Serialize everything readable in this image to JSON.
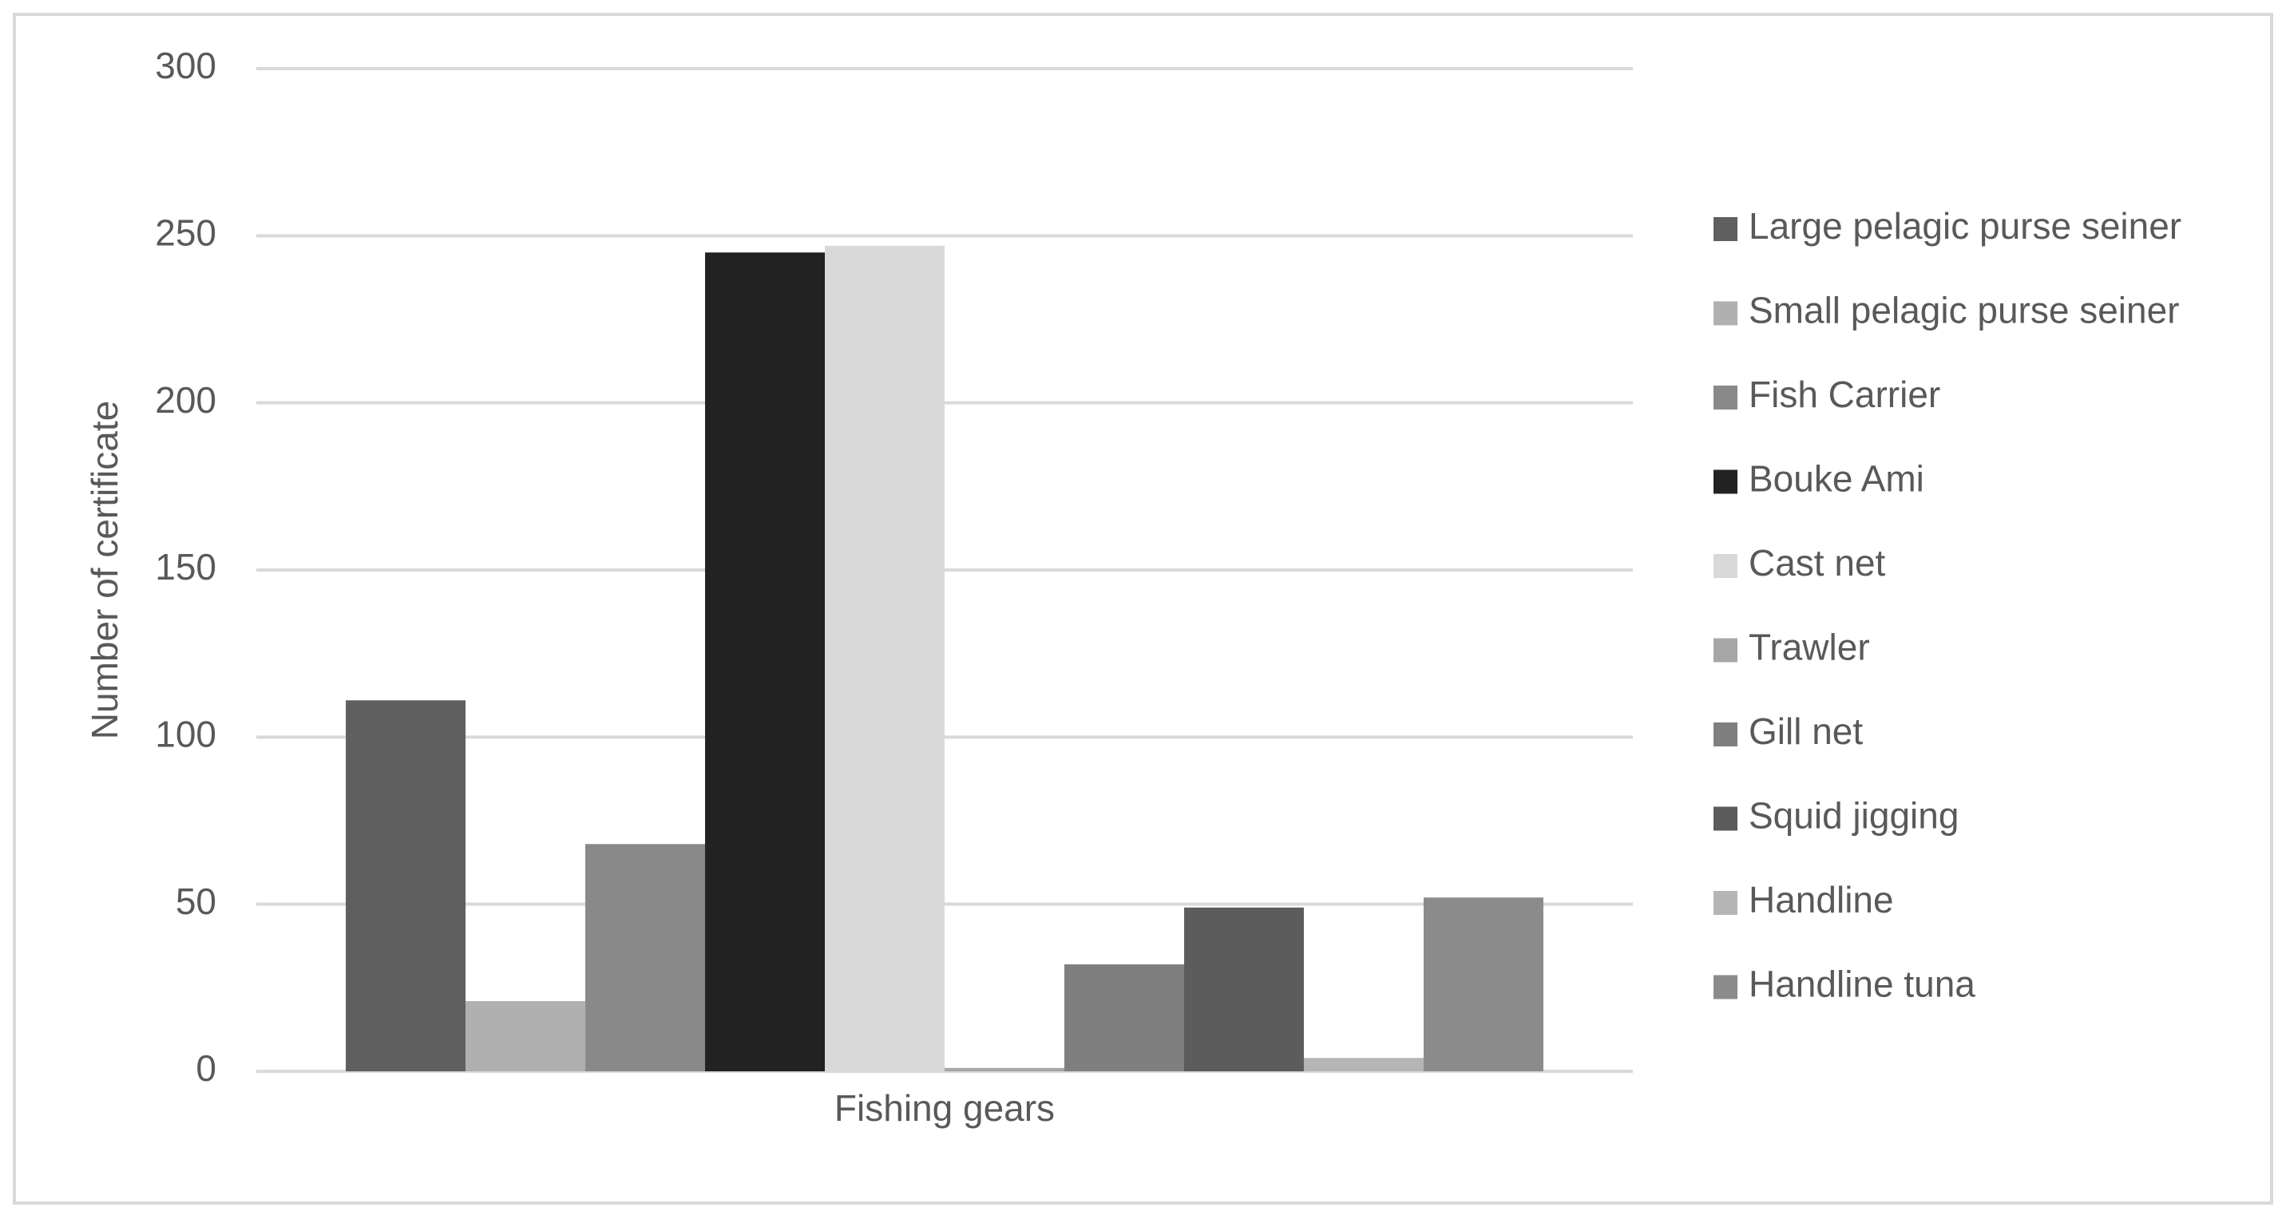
{
  "chart_data": {
    "type": "bar",
    "y_label": "Number of certificate",
    "categories": [
      "Fishing gears"
    ],
    "series": [
      {
        "name": "Large pelagic purse seiner",
        "color": "#5f5f5f",
        "values": [
          111
        ]
      },
      {
        "name": "Small pelagic purse seiner",
        "color": "#b0b0b0",
        "values": [
          21
        ]
      },
      {
        "name": "Fish Carrier",
        "color": "#898989",
        "values": [
          68
        ]
      },
      {
        "name": "Bouke Ami",
        "color": "#222222",
        "values": [
          245
        ]
      },
      {
        "name": "Cast net",
        "color": "#d9d9d9",
        "values": [
          247
        ]
      },
      {
        "name": "Trawler",
        "color": "#a6a6a6",
        "values": [
          1
        ]
      },
      {
        "name": "Gill net",
        "color": "#7f7f7f",
        "values": [
          32
        ]
      },
      {
        "name": "Squid jigging",
        "color": "#5c5c5c",
        "values": [
          49
        ]
      },
      {
        "name": "Handline",
        "color": "#b5b5b5",
        "values": [
          4
        ]
      },
      {
        "name": "Handline tuna",
        "color": "#8b8b8b",
        "values": [
          52
        ]
      }
    ],
    "ylim": [
      0,
      300
    ],
    "yticks": [
      0,
      50,
      100,
      150,
      200,
      250,
      300
    ],
    "grid": true,
    "legend": "right"
  }
}
